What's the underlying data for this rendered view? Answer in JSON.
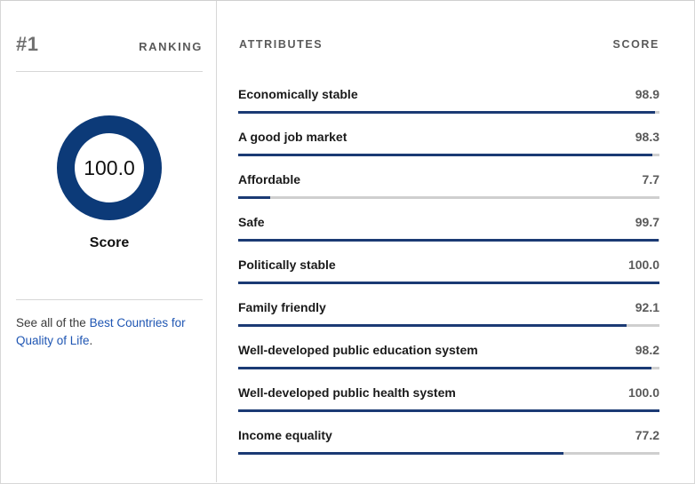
{
  "ranking": {
    "number": "#1",
    "label": "RANKING"
  },
  "overall": {
    "value": "100.0",
    "fraction": 1.0,
    "caption": "Score",
    "ring_color": "#0c3a78"
  },
  "see_all": {
    "prefix": "See all of the ",
    "link_text": "Best Countries for Quality of Life",
    "suffix": "."
  },
  "table": {
    "attributes_header": "ATTRIBUTES",
    "score_header": "SCORE",
    "bar_color": "#1b3a74",
    "track_color": "#cfcfcf",
    "rows": [
      {
        "name": "Economically stable",
        "score": "98.9",
        "fraction": 0.989
      },
      {
        "name": "A good job market",
        "score": "98.3",
        "fraction": 0.983
      },
      {
        "name": "Affordable",
        "score": "7.7",
        "fraction": 0.077
      },
      {
        "name": "Safe",
        "score": "99.7",
        "fraction": 0.997
      },
      {
        "name": "Politically stable",
        "score": "100.0",
        "fraction": 1.0
      },
      {
        "name": "Family friendly",
        "score": "92.1",
        "fraction": 0.921
      },
      {
        "name": "Well-developed public education system",
        "score": "98.2",
        "fraction": 0.982
      },
      {
        "name": "Well-developed public health system",
        "score": "100.0",
        "fraction": 1.0
      },
      {
        "name": "Income equality",
        "score": "77.2",
        "fraction": 0.772
      }
    ]
  }
}
